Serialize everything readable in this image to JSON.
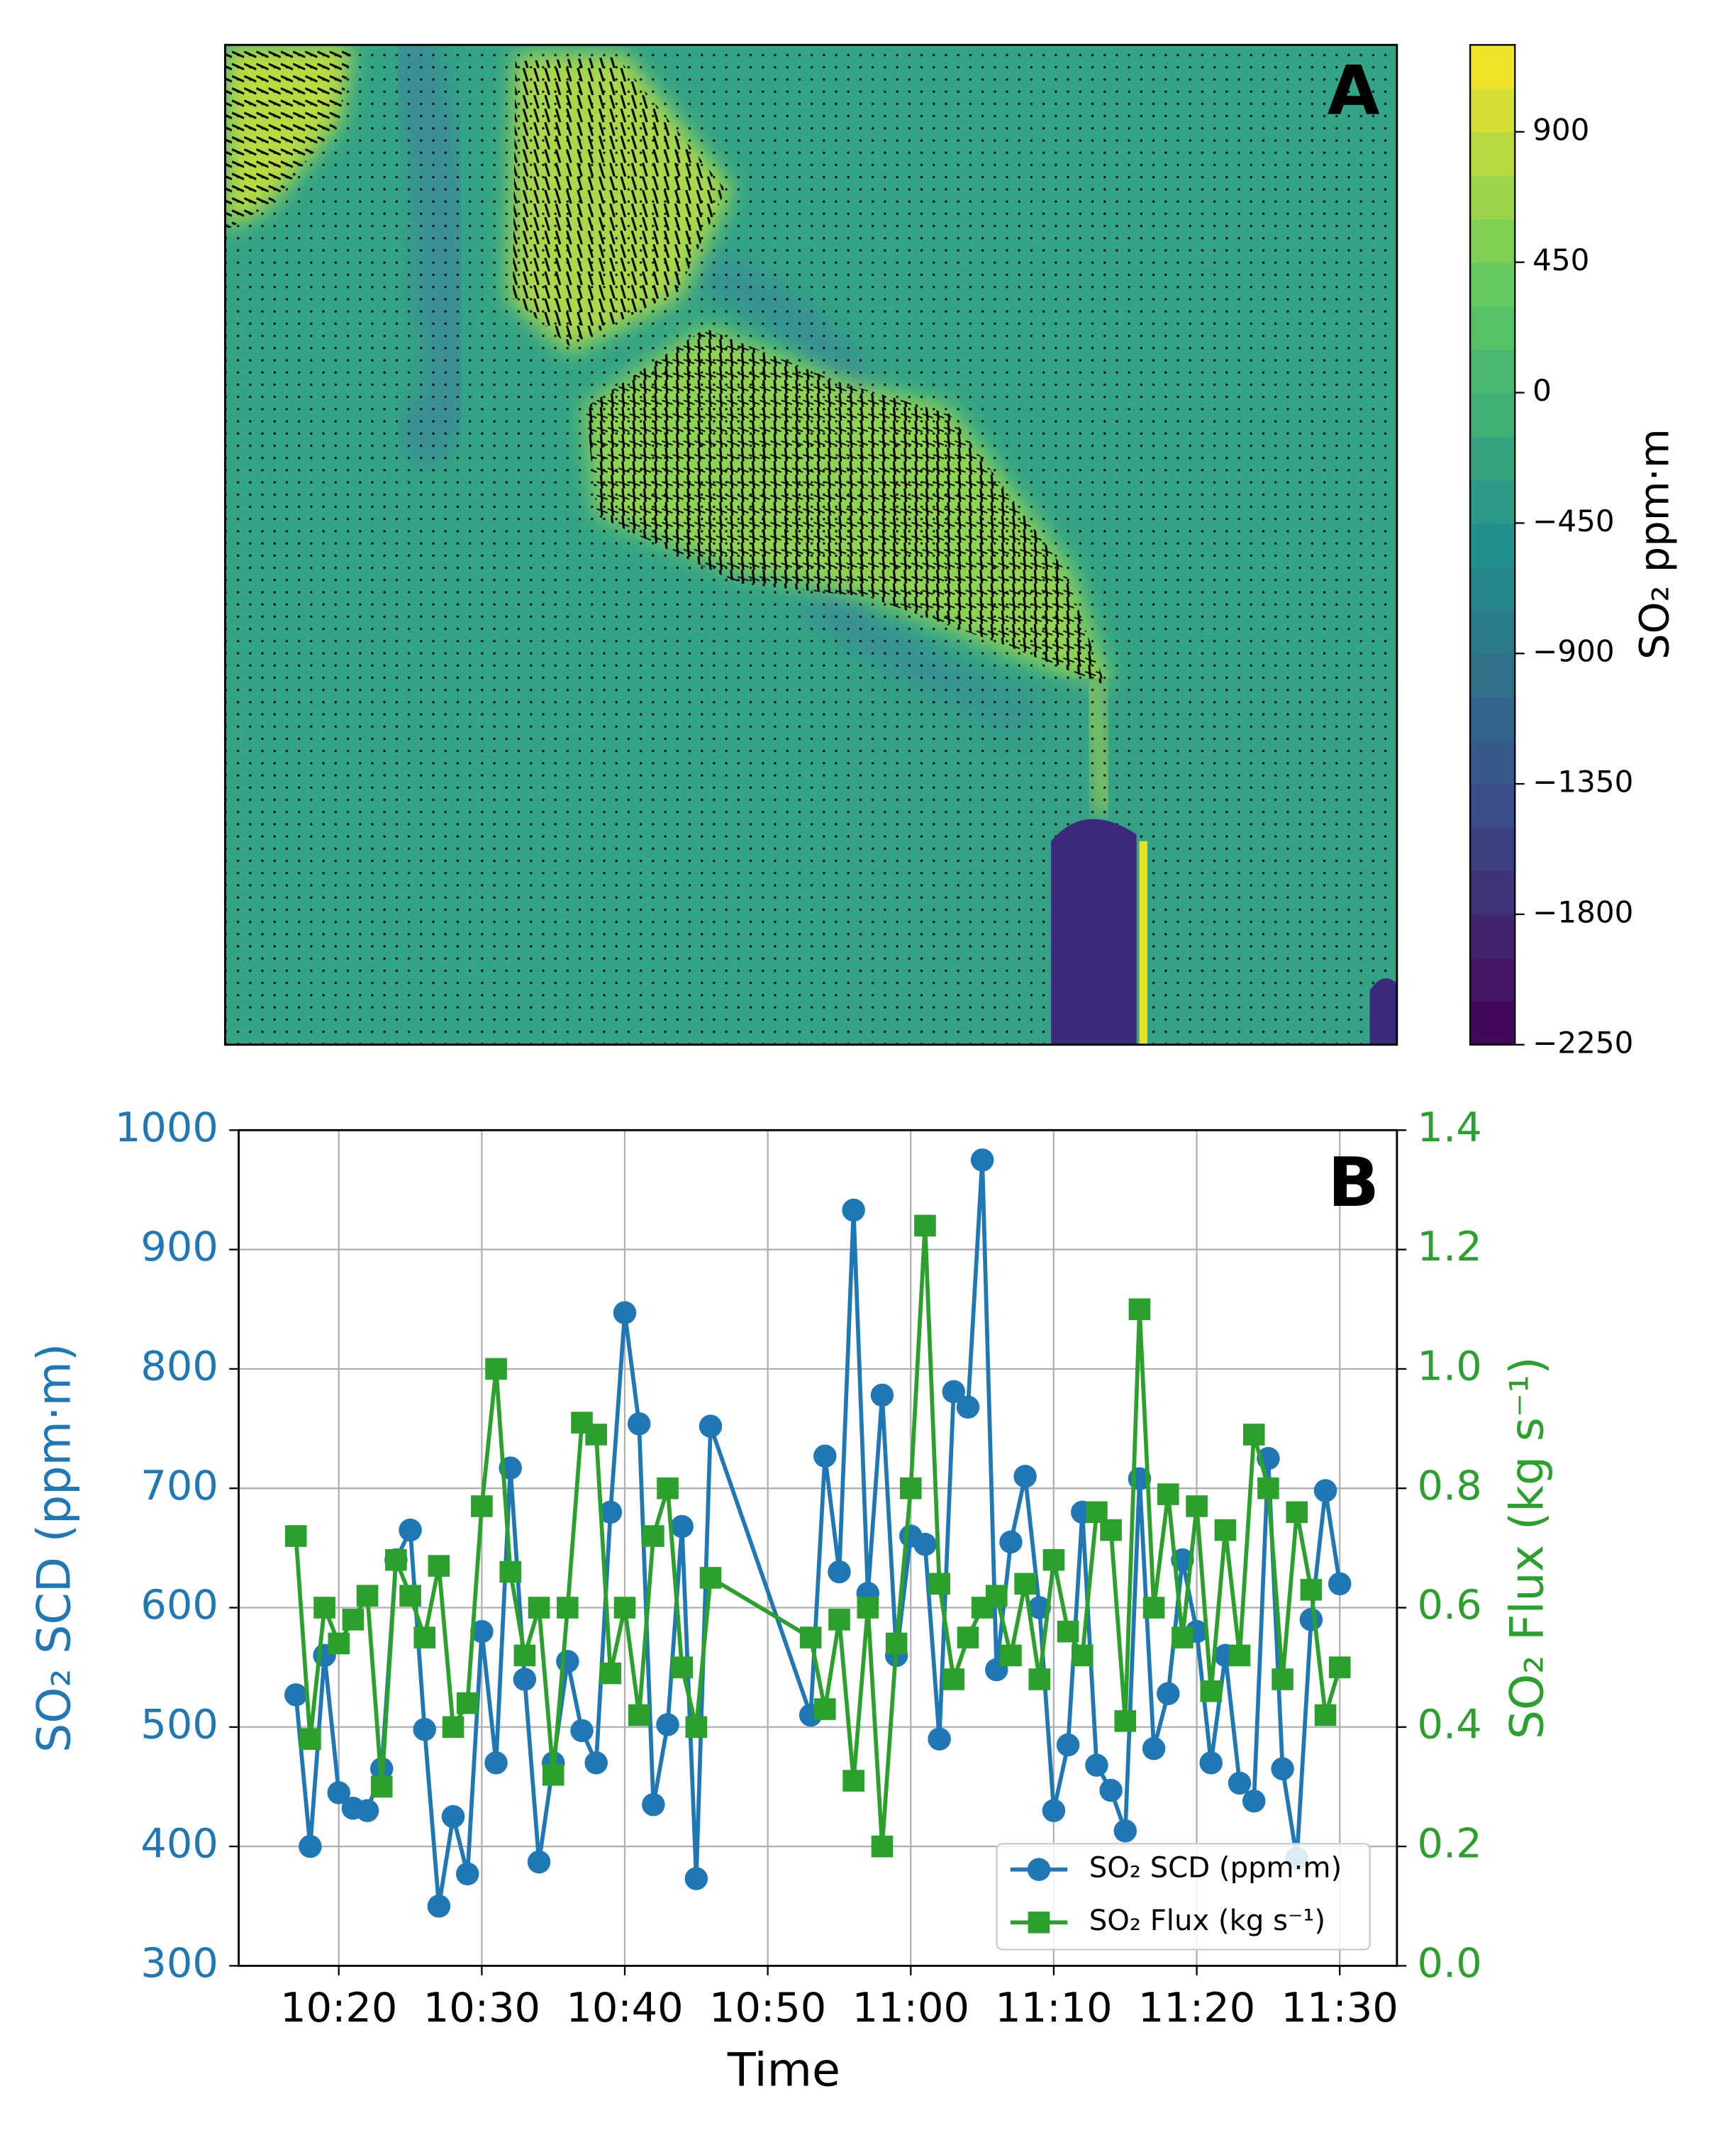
{
  "chart_data": [
    {
      "type": "heatmap",
      "annotation": "A",
      "colorbar_label": "SO₂ ppm·m",
      "colormap": "viridis",
      "clim": [
        -2250,
        1200
      ],
      "cticks": [
        900,
        450,
        0,
        {
          "value": -450,
          "label": "−450"
        },
        {
          "value": -900,
          "label": "−900"
        },
        {
          "value": -1350,
          "label": "−1350"
        },
        {
          "value": -1800,
          "label": "−1800"
        },
        {
          "value": -2250,
          "label": "−2250"
        }
      ]
    },
    {
      "type": "line",
      "annotation": "B",
      "xlabel": "Time",
      "ylabel": "SO₂ SCD (ppm·m)",
      "y2label": "SO₂ Flux (kg s⁻¹)",
      "grid": true,
      "legend": "lower right",
      "xlim": [
        "10:13",
        "11:34"
      ],
      "xticks": [
        "10:20",
        "10:30",
        "10:40",
        "10:50",
        "11:00",
        "11:10",
        "11:20",
        "11:30"
      ],
      "ylim": [
        300,
        1000
      ],
      "yticks": [
        300,
        400,
        500,
        600,
        700,
        800,
        900,
        1000
      ],
      "y2lim": [
        0,
        1.4
      ],
      "y2ticks": [
        {
          "value": 0,
          "label": "0.0"
        },
        0.2,
        0.4,
        0.6,
        0.8,
        {
          "value": 1,
          "label": "1.0"
        },
        1.2,
        1.4
      ],
      "x": [
        "10:17",
        "10:18",
        "10:19",
        "10:20",
        "10:21",
        "10:22",
        "10:23",
        "10:24",
        "10:25",
        "10:26",
        "10:27",
        "10:28",
        "10:29",
        "10:30",
        "10:31",
        "10:32",
        "10:33",
        "10:34",
        "10:35",
        "10:36",
        "10:37",
        "10:38",
        "10:39",
        "10:40",
        "10:41",
        "10:42",
        "10:43",
        "10:44",
        "10:45",
        "10:46",
        "10:53",
        "10:54",
        "10:55",
        "10:56",
        "10:57",
        "10:58",
        "10:59",
        "11:00",
        "11:01",
        "11:02",
        "11:03",
        "11:04",
        "11:05",
        "11:06",
        "11:07",
        "11:08",
        "11:09",
        "11:10",
        "11:11",
        "11:12",
        "11:13",
        "11:14",
        "11:15",
        "11:16",
        "11:17",
        "11:18",
        "11:19",
        "11:20",
        "11:21",
        "11:22",
        "11:23",
        "11:24",
        "11:25",
        "11:26",
        "11:27",
        "11:28",
        "11:29",
        "11:30"
      ],
      "series": [
        {
          "name": "SO₂ SCD (ppm·m)",
          "color": "#1f77b4",
          "marker": "circle",
          "values": [
            527,
            400,
            560,
            445,
            432,
            430,
            465,
            640,
            665,
            498,
            350,
            425,
            377,
            580,
            470,
            717,
            540,
            387,
            470,
            555,
            497,
            470,
            680,
            847,
            754,
            435,
            502,
            668,
            373,
            752,
            510,
            727,
            630,
            933,
            612,
            778,
            560,
            660,
            653,
            490,
            781,
            768,
            975,
            548,
            655,
            710,
            600,
            430,
            485,
            680,
            468,
            447,
            413,
            708,
            482,
            528,
            640,
            580,
            470,
            560,
            453,
            438,
            725,
            465,
            390,
            590,
            698,
            620
          ]
        },
        {
          "name": "SO₂ Flux (kg s⁻¹)",
          "color": "#2ca02c",
          "marker": "square",
          "axis": "y2",
          "values": [
            0.72,
            0.38,
            0.6,
            0.54,
            0.58,
            0.62,
            0.3,
            0.68,
            0.62,
            0.55,
            0.67,
            0.4,
            0.44,
            0.77,
            1.0,
            0.66,
            0.52,
            0.6,
            0.32,
            0.6,
            0.91,
            0.89,
            0.49,
            0.6,
            0.42,
            0.72,
            0.8,
            0.5,
            0.4,
            0.65,
            0.55,
            0.43,
            0.58,
            0.31,
            0.6,
            0.2,
            0.54,
            0.8,
            1.24,
            0.64,
            0.48,
            0.55,
            0.6,
            0.62,
            0.52,
            0.64,
            0.48,
            0.68,
            0.56,
            0.52,
            0.76,
            0.73,
            0.41,
            1.1,
            0.6,
            0.79,
            0.55,
            0.77,
            0.46,
            0.73,
            0.52,
            0.89,
            0.8,
            0.48,
            0.76,
            0.63,
            0.42,
            0.5
          ]
        }
      ]
    }
  ]
}
